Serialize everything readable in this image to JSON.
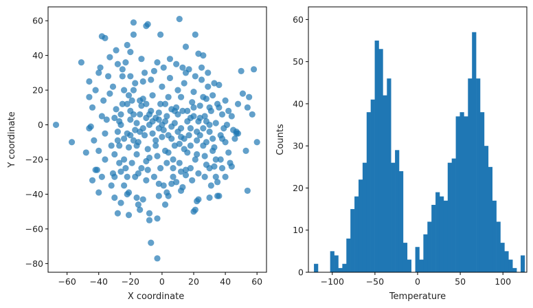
{
  "chart_data": [
    {
      "type": "scatter",
      "xlabel": "X coordinate",
      "ylabel": "Y coordinate",
      "xlim": [
        -72,
        66
      ],
      "ylim": [
        -85,
        68
      ],
      "xticks": [
        -60,
        -40,
        -20,
        0,
        20,
        40,
        60
      ],
      "yticks": [
        -80,
        -60,
        -40,
        -20,
        0,
        20,
        40,
        60
      ],
      "grid": false,
      "color": "#1f77b4",
      "alpha": 0.7,
      "points": [
        [
          -67,
          0
        ],
        [
          -57,
          -10
        ],
        [
          -51,
          36
        ],
        [
          -46,
          -2
        ],
        [
          -45,
          -1
        ],
        [
          -46,
          25
        ],
        [
          -44,
          10
        ],
        [
          -46,
          16
        ],
        [
          -43,
          -9
        ],
        [
          -42,
          -26
        ],
        [
          -41,
          -26
        ],
        [
          -40,
          -39
        ],
        [
          -38,
          -30
        ],
        [
          -36,
          -20
        ],
        [
          -38,
          5
        ],
        [
          -36,
          -5
        ],
        [
          -40,
          30
        ],
        [
          -39,
          33
        ],
        [
          -38,
          51
        ],
        [
          -36,
          50
        ],
        [
          -33,
          39
        ],
        [
          -30,
          -30
        ],
        [
          -31,
          -28
        ],
        [
          -29,
          43
        ],
        [
          -28,
          -51
        ],
        [
          -27,
          -12
        ],
        [
          -25,
          28
        ],
        [
          -24,
          -35
        ],
        [
          -22,
          -40
        ],
        [
          -21,
          -52
        ],
        [
          -21,
          -39
        ],
        [
          -22,
          46
        ],
        [
          -20,
          42
        ],
        [
          -20,
          28
        ],
        [
          -18,
          59
        ],
        [
          -18,
          52
        ],
        [
          -17,
          -30
        ],
        [
          -16,
          -42
        ],
        [
          -15,
          -46
        ],
        [
          -14,
          -49
        ],
        [
          -12,
          -43
        ],
        [
          -13,
          -25
        ],
        [
          -10,
          -32
        ],
        [
          -10,
          57
        ],
        [
          -9,
          58
        ],
        [
          -8,
          -51
        ],
        [
          -8,
          -55
        ],
        [
          -7,
          -68
        ],
        [
          -3,
          -54
        ],
        [
          -3,
          -77
        ],
        [
          -2,
          -34
        ],
        [
          -2,
          -41
        ],
        [
          -1,
          52
        ],
        [
          1,
          -35
        ],
        [
          2,
          -46
        ],
        [
          3,
          -39
        ],
        [
          4,
          -41
        ],
        [
          6,
          -34
        ],
        [
          7,
          -30
        ],
        [
          9,
          -33
        ],
        [
          11,
          61
        ],
        [
          12,
          -27
        ],
        [
          12,
          -38
        ],
        [
          13,
          -36
        ],
        [
          15,
          45
        ],
        [
          15,
          -29
        ],
        [
          18,
          -25
        ],
        [
          20,
          -50
        ],
        [
          21,
          -49
        ],
        [
          22,
          -44
        ],
        [
          23,
          -43
        ],
        [
          21,
          52
        ],
        [
          23,
          41
        ],
        [
          26,
          40
        ],
        [
          27,
          -18
        ],
        [
          28,
          -23
        ],
        [
          30,
          -25
        ],
        [
          30,
          -42
        ],
        [
          32,
          -15
        ],
        [
          33,
          -24
        ],
        [
          34,
          -30
        ],
        [
          35,
          -41
        ],
        [
          36,
          -41
        ],
        [
          37,
          -20
        ],
        [
          38,
          -8
        ],
        [
          40,
          -10
        ],
        [
          41,
          0
        ],
        [
          43,
          -22
        ],
        [
          44,
          -24
        ],
        [
          45,
          -3
        ],
        [
          47,
          -4
        ],
        [
          47,
          -5
        ],
        [
          48,
          -5
        ],
        [
          50,
          31
        ],
        [
          51,
          18
        ],
        [
          53,
          -15
        ],
        [
          54,
          -38
        ],
        [
          54,
          10
        ],
        [
          55,
          16
        ],
        [
          58,
          32
        ],
        [
          57,
          6
        ],
        [
          60,
          -10
        ],
        [
          -32,
          -12
        ],
        [
          -30,
          -17
        ],
        [
          -28,
          -9
        ],
        [
          -27,
          2
        ],
        [
          -26,
          6
        ],
        [
          -25,
          12
        ],
        [
          -24,
          -20
        ],
        [
          -23,
          -25
        ],
        [
          -22,
          -5
        ],
        [
          -21,
          -13
        ],
        [
          -20,
          3
        ],
        [
          -19,
          14
        ],
        [
          -18,
          20
        ],
        [
          -17,
          -3
        ],
        [
          -16,
          -17
        ],
        [
          -15,
          -10
        ],
        [
          -14,
          6
        ],
        [
          -13,
          11
        ],
        [
          -12,
          25
        ],
        [
          -11,
          -6
        ],
        [
          -10,
          -21
        ],
        [
          -9,
          -14
        ],
        [
          -8,
          0
        ],
        [
          -7,
          8
        ],
        [
          -6,
          17
        ],
        [
          -5,
          31
        ],
        [
          -4,
          -9
        ],
        [
          -3,
          -18
        ],
        [
          -2,
          3
        ],
        [
          -1,
          12
        ],
        [
          0,
          22
        ],
        [
          1,
          -3
        ],
        [
          2,
          -15
        ],
        [
          3,
          5
        ],
        [
          4,
          16
        ],
        [
          5,
          27
        ],
        [
          6,
          -8
        ],
        [
          7,
          -20
        ],
        [
          8,
          1
        ],
        [
          9,
          10
        ],
        [
          10,
          20
        ],
        [
          11,
          -11
        ],
        [
          12,
          -2
        ],
        [
          13,
          8
        ],
        [
          14,
          24
        ],
        [
          15,
          30
        ],
        [
          16,
          -16
        ],
        [
          17,
          -6
        ],
        [
          18,
          4
        ],
        [
          19,
          13
        ],
        [
          20,
          19
        ],
        [
          21,
          -20
        ],
        [
          22,
          -9
        ],
        [
          23,
          2
        ],
        [
          24,
          11
        ],
        [
          25,
          26
        ],
        [
          26,
          -12
        ],
        [
          27,
          5
        ],
        [
          28,
          15
        ],
        [
          29,
          22
        ],
        [
          30,
          -4
        ],
        [
          31,
          8
        ],
        [
          32,
          17
        ],
        [
          33,
          -13
        ],
        [
          34,
          1
        ],
        [
          35,
          12
        ],
        [
          36,
          23
        ],
        [
          37,
          -6
        ],
        [
          38,
          6
        ],
        [
          39,
          -2
        ],
        [
          40,
          14
        ],
        [
          42,
          -16
        ],
        [
          -35,
          3
        ],
        [
          -33,
          18
        ],
        [
          -31,
          22
        ],
        [
          -29,
          9
        ],
        [
          -27,
          -22
        ],
        [
          -26,
          -27
        ],
        [
          -25,
          32
        ],
        [
          -23,
          36
        ],
        [
          -21,
          17
        ],
        [
          -19,
          -22
        ],
        [
          -17,
          24
        ],
        [
          -15,
          -28
        ],
        [
          -13,
          38
        ],
        [
          -11,
          30
        ],
        [
          -9,
          -26
        ],
        [
          -7,
          26
        ],
        [
          -5,
          -30
        ],
        [
          -3,
          36
        ],
        [
          -1,
          -25
        ],
        [
          1,
          33
        ],
        [
          3,
          -22
        ],
        [
          5,
          38
        ],
        [
          7,
          -25
        ],
        [
          9,
          35
        ],
        [
          11,
          -22
        ],
        [
          13,
          33
        ],
        [
          15,
          -26
        ],
        [
          17,
          32
        ],
        [
          19,
          -32
        ],
        [
          21,
          28
        ],
        [
          23,
          -28
        ],
        [
          25,
          33
        ],
        [
          27,
          -30
        ],
        [
          29,
          30
        ],
        [
          31,
          -35
        ],
        [
          33,
          24
        ],
        [
          35,
          -33
        ],
        [
          -48,
          -16
        ],
        [
          -44,
          -32
        ],
        [
          -42,
          20
        ],
        [
          -40,
          -15
        ],
        [
          -37,
          14
        ],
        [
          -34,
          28
        ],
        [
          -32,
          -35
        ],
        [
          -30,
          -42
        ],
        [
          -28,
          35
        ],
        [
          -26,
          -45
        ],
        [
          -24,
          20
        ],
        [
          -22,
          -30
        ],
        [
          -20,
          8
        ],
        [
          -18,
          -9
        ],
        [
          -16,
          1
        ],
        [
          -14,
          -4
        ],
        [
          -12,
          15
        ],
        [
          -10,
          4
        ],
        [
          -8,
          -19
        ],
        [
          -6,
          2
        ],
        [
          -4,
          -12
        ],
        [
          -2,
          7
        ],
        [
          0,
          -7
        ],
        [
          2,
          12
        ],
        [
          4,
          -16
        ],
        [
          6,
          9
        ],
        [
          8,
          -12
        ],
        [
          10,
          6
        ],
        [
          12,
          -7
        ],
        [
          14,
          -14
        ],
        [
          16,
          8
        ],
        [
          18,
          -12
        ],
        [
          20,
          5
        ],
        [
          22,
          -17
        ],
        [
          24,
          -6
        ],
        [
          26,
          16
        ],
        [
          28,
          -10
        ],
        [
          30,
          10
        ],
        [
          32,
          -8
        ],
        [
          34,
          -20
        ],
        [
          36,
          10
        ],
        [
          38,
          -25
        ],
        [
          40,
          -30
        ],
        [
          42,
          8
        ],
        [
          44,
          5
        ],
        [
          46,
          -8
        ],
        [
          48,
          12
        ],
        [
          -10,
          12
        ],
        [
          -6,
          -5
        ],
        [
          -2,
          -2
        ],
        [
          2,
          2
        ],
        [
          6,
          -1
        ],
        [
          10,
          -4
        ],
        [
          -8,
          6
        ],
        [
          -4,
          4
        ],
        [
          0,
          0
        ],
        [
          4,
          -6
        ],
        [
          8,
          8
        ],
        [
          -12,
          -2
        ],
        [
          -14,
          14
        ],
        [
          14,
          -8
        ],
        [
          12,
          16
        ],
        [
          -16,
          -12
        ],
        [
          16,
          2
        ],
        [
          -18,
          6
        ],
        [
          18,
          -2
        ],
        [
          -20,
          -6
        ],
        [
          20,
          10
        ],
        [
          -22,
          12
        ],
        [
          22,
          -4
        ],
        [
          -24,
          -8
        ],
        [
          24,
          4
        ],
        [
          -26,
          0
        ],
        [
          26,
          -2
        ],
        [
          -28,
          -4
        ],
        [
          28,
          2
        ],
        [
          -30,
          4
        ],
        [
          30,
          0
        ]
      ]
    },
    {
      "type": "bar",
      "xlabel": "Temperature",
      "ylabel": "Counts",
      "xlim": [
        -128,
        128
      ],
      "ylim": [
        0,
        63
      ],
      "xticks": [
        -100,
        -50,
        0,
        50,
        100
      ],
      "yticks": [
        0,
        10,
        20,
        30,
        40,
        50,
        60
      ],
      "grid": false,
      "color": "#1f77b4",
      "bin_start": -121.5,
      "bin_width": 4.75,
      "values": [
        2,
        0,
        0,
        0,
        5,
        4,
        1,
        2,
        8,
        15,
        18,
        22,
        26,
        38,
        41,
        55,
        53,
        42,
        46,
        26,
        29,
        24,
        7,
        3,
        0,
        6,
        3,
        9,
        12,
        16,
        19,
        18,
        17,
        26,
        27,
        37,
        38,
        37,
        46,
        57,
        46,
        38,
        30,
        25,
        17,
        12,
        7,
        5,
        3,
        1,
        0,
        4
      ]
    }
  ]
}
